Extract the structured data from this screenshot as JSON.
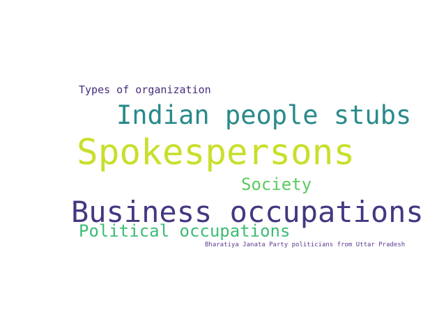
{
  "words": [
    {
      "text": "Types of organization",
      "color": "#472d7b"
    },
    {
      "text": "Indian people stubs",
      "color": "#2a8a8a"
    },
    {
      "text": "Spokespersons",
      "color": "#c9df2b"
    },
    {
      "text": "Society",
      "color": "#5ec962"
    },
    {
      "text": "Business occupations",
      "color": "#453781"
    },
    {
      "text": "Political occupations",
      "color": "#3cbc75"
    },
    {
      "text": "Bharatiya Janata Party politicians from Uttar Pradesh",
      "color": "#5c3a8f"
    }
  ]
}
